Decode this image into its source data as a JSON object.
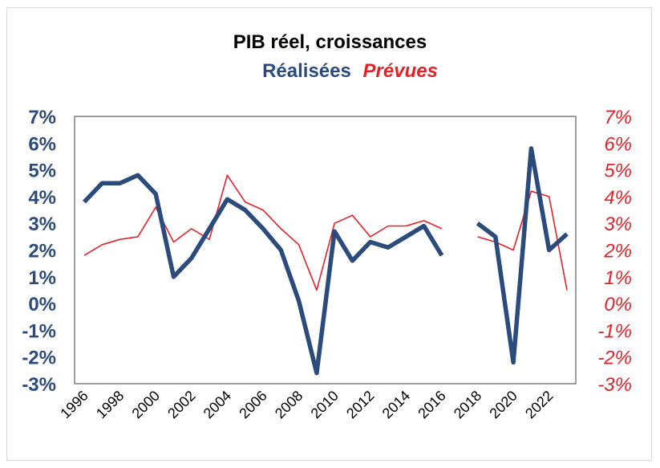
{
  "chart_data": {
    "type": "line",
    "title": "PIB réel, croissances",
    "legend": {
      "realised": "Réalisées",
      "expected": "Prévues"
    },
    "colors": {
      "realised": "#2a4b7c",
      "expected": "#e32227",
      "plot_border": "#7f7f7f"
    },
    "x": [
      1996,
      1997,
      1998,
      1999,
      2000,
      2001,
      2002,
      2003,
      2004,
      2005,
      2006,
      2007,
      2008,
      2009,
      2010,
      2011,
      2012,
      2013,
      2014,
      2015,
      2016,
      2017,
      2018,
      2019,
      2020,
      2021,
      2022,
      2023
    ],
    "x_tick_labels": [
      "1996",
      "1998",
      "2000",
      "2002",
      "2004",
      "2006",
      "2008",
      "2010",
      "2012",
      "2014",
      "2016",
      "2018",
      "2020",
      "2022"
    ],
    "series": [
      {
        "name": "Réalisées",
        "axis": "left",
        "values": [
          3.8,
          4.5,
          4.5,
          4.8,
          4.1,
          1.0,
          1.7,
          2.8,
          3.9,
          3.5,
          2.8,
          2.0,
          0.1,
          -2.6,
          2.7,
          1.6,
          2.3,
          2.1,
          2.5,
          2.9,
          1.8,
          null,
          3.0,
          2.5,
          -2.2,
          5.8,
          2.0,
          2.6
        ]
      },
      {
        "name": "Prévues",
        "axis": "right",
        "values": [
          1.8,
          2.2,
          2.4,
          2.5,
          3.6,
          2.3,
          2.8,
          2.4,
          4.8,
          3.8,
          3.5,
          2.8,
          2.2,
          0.5,
          3.0,
          3.3,
          2.5,
          2.9,
          2.9,
          3.1,
          2.8,
          null,
          2.5,
          2.3,
          2.0,
          4.2,
          4.0,
          0.5
        ]
      }
    ],
    "y_left": {
      "min": -3,
      "max": 7,
      "step": 1,
      "tick_labels": [
        "7%",
        "6%",
        "5%",
        "4%",
        "3%",
        "2%",
        "1%",
        "0%",
        "-1%",
        "-2%",
        "-3%"
      ]
    },
    "y_right": {
      "min": -3,
      "max": 7,
      "step": 1,
      "tick_labels": [
        "7%",
        "6%",
        "5%",
        "4%",
        "3%",
        "2%",
        "1%",
        "0%",
        "-1%",
        "-2%",
        "-3%"
      ]
    },
    "grid": false
  }
}
